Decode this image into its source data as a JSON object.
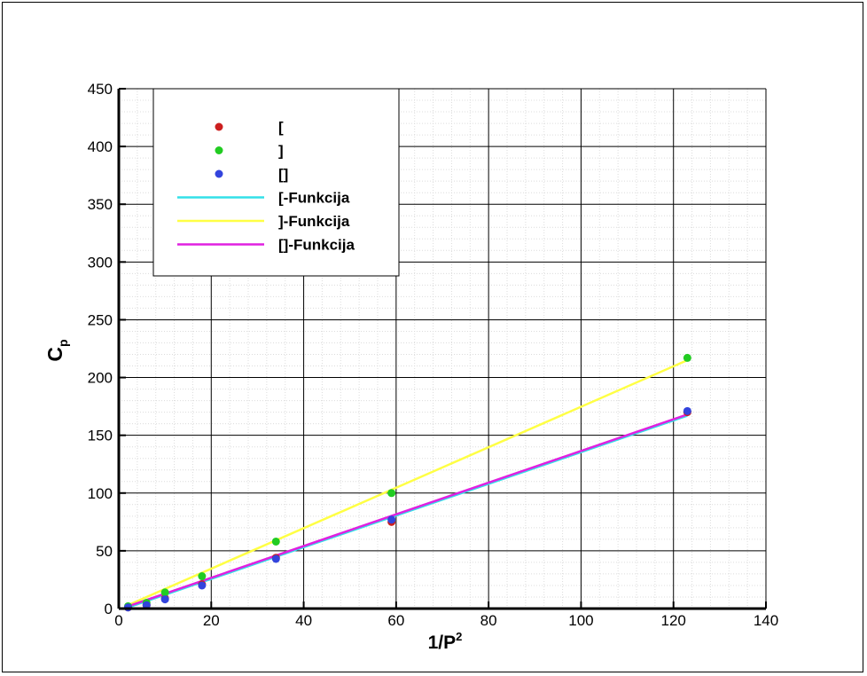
{
  "chart_data": {
    "type": "scatter",
    "xlabel": {
      "base": "1/P",
      "sup": "2"
    },
    "ylabel": {
      "base": "C",
      "sub": "p"
    },
    "xlim": [
      0,
      140
    ],
    "ylim": [
      0,
      450
    ],
    "x_ticks": [
      0,
      20,
      40,
      60,
      80,
      100,
      120,
      140
    ],
    "y_ticks": [
      0,
      50,
      100,
      150,
      200,
      250,
      300,
      350,
      400,
      450
    ],
    "grid": true,
    "legend_position": "top-left",
    "series": [
      {
        "name": "[",
        "kind": "points",
        "color": "#cc1f1f",
        "x": [
          2,
          6,
          10,
          18,
          34,
          59,
          123
        ],
        "y": [
          1,
          3,
          9,
          21,
          44,
          75,
          170
        ]
      },
      {
        "name": "]",
        "kind": "points",
        "color": "#22cc22",
        "x": [
          2,
          6,
          10,
          18,
          34,
          59,
          123
        ],
        "y": [
          2,
          5,
          14,
          28,
          58,
          100,
          217
        ]
      },
      {
        "name": "[]",
        "kind": "points",
        "color": "#3344dd",
        "x": [
          2,
          6,
          10,
          18,
          34,
          59,
          123
        ],
        "y": [
          1,
          3,
          8,
          20,
          43,
          77,
          171
        ]
      },
      {
        "name": "[-Funkcija",
        "kind": "line",
        "color": "#33e0e8",
        "x": [
          2,
          123
        ],
        "y": [
          1,
          167
        ]
      },
      {
        "name": "]-Funkcija",
        "kind": "line",
        "color": "#ffff44",
        "x": [
          2,
          123
        ],
        "y": [
          3,
          215
        ]
      },
      {
        "name": "[]-Funkcija",
        "kind": "line",
        "color": "#e020e0",
        "x": [
          2,
          123
        ],
        "y": [
          2,
          168
        ]
      }
    ]
  }
}
